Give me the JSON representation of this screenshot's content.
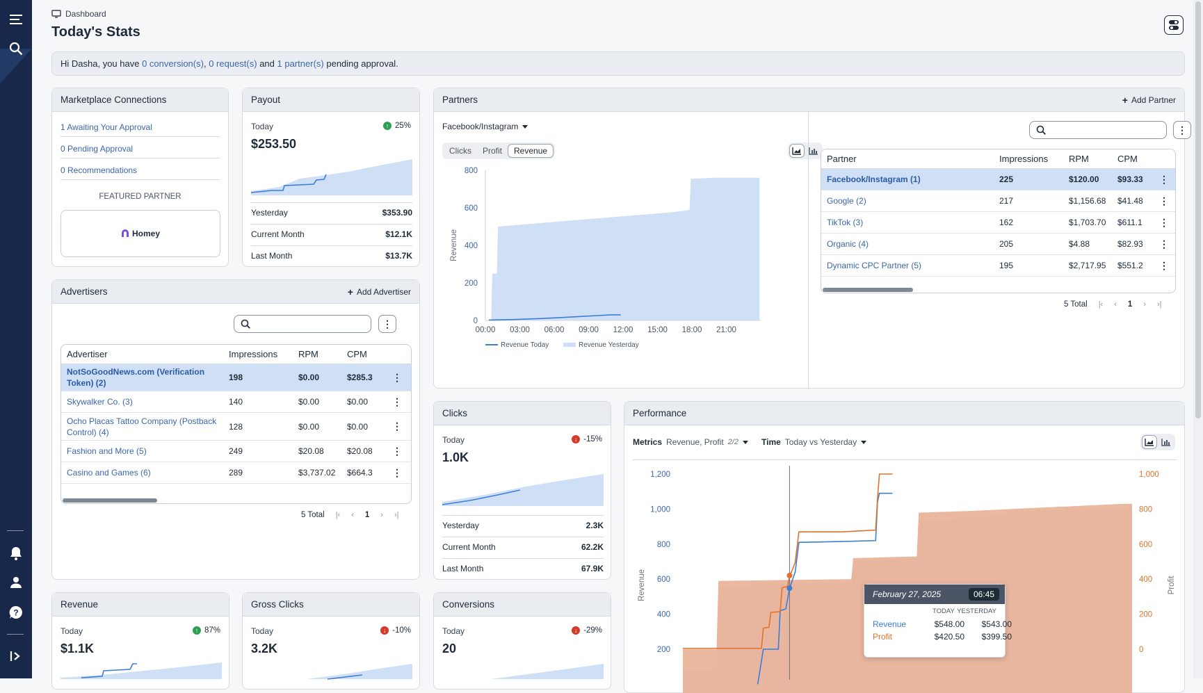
{
  "breadcrumb": {
    "label": "Dashboard"
  },
  "page": {
    "title": "Today's Stats"
  },
  "notice": {
    "greeting": "Hi Dasha, you have",
    "conversions": "0 conversion(s)",
    "sep1": ",",
    "requests": "0 request(s)",
    "and": "and",
    "partners": "1 partner(s)",
    "tail": "pending approval."
  },
  "marketplace": {
    "title": "Marketplace Connections",
    "items": [
      "1 Awaiting Your Approval",
      "0 Pending Approval",
      "0 Recommendations"
    ],
    "featured_label": "FEATURED PARTNER",
    "featured_name": "Homey"
  },
  "payout": {
    "title": "Payout",
    "today_label": "Today",
    "value": "$253.50",
    "pct": "25%",
    "trend": "up",
    "rows": [
      {
        "label": "Yesterday",
        "value": "$353.90"
      },
      {
        "label": "Current Month",
        "value": "$12.1K"
      },
      {
        "label": "Last Month",
        "value": "$13.7K"
      }
    ]
  },
  "advertisers": {
    "title": "Advertisers",
    "add_label": "Add Advertiser",
    "columns": [
      "Advertiser",
      "Impressions",
      "RPM",
      "CPM"
    ],
    "rows": [
      {
        "name": "NotSoGoodNews.com (Verification Token) (2)",
        "impressions": "198",
        "rpm": "$0.00",
        "cpm": "$285.3",
        "selected": true
      },
      {
        "name": "Skywalker Co. (3)",
        "impressions": "140",
        "rpm": "$0.00",
        "cpm": "$0.00"
      },
      {
        "name": "Ocho Placas Tattoo Company (Postback Control) (4)",
        "impressions": "128",
        "rpm": "$0.00",
        "cpm": "$0.00"
      },
      {
        "name": "Fashion and More (5)",
        "impressions": "249",
        "rpm": "$20.08",
        "cpm": "$20.08"
      },
      {
        "name": "Casino and Games (6)",
        "impressions": "289",
        "rpm": "$3,737.02",
        "cpm": "$664.3"
      }
    ],
    "total": "5 Total",
    "page": "1"
  },
  "partners": {
    "title": "Partners",
    "add_label": "Add Partner",
    "selector": "Facebook/Instagram",
    "tabs": [
      "Clicks",
      "Profit",
      "Revenue"
    ],
    "active_tab": "Revenue",
    "columns": [
      "Partner",
      "Impressions",
      "RPM",
      "CPM"
    ],
    "rows": [
      {
        "name": "Facebook/Instagram (1)",
        "impressions": "225",
        "rpm": "$120.00",
        "cpm": "$93.33",
        "selected": true
      },
      {
        "name": "Google (2)",
        "impressions": "217",
        "rpm": "$1,156.68",
        "cpm": "$41.48"
      },
      {
        "name": "TikTok (3)",
        "impressions": "162",
        "rpm": "$1,703.70",
        "cpm": "$611.1"
      },
      {
        "name": "Organic (4)",
        "impressions": "205",
        "rpm": "$4.88",
        "cpm": "$82.93"
      },
      {
        "name": "Dynamic CPC Partner (5)",
        "impressions": "195",
        "rpm": "$2,717.95",
        "cpm": "$551.2"
      }
    ],
    "total": "5 Total",
    "page": "1"
  },
  "clicks": {
    "title": "Clicks",
    "today_label": "Today",
    "value": "1.0K",
    "pct": "-15%",
    "trend": "down",
    "rows": [
      {
        "label": "Yesterday",
        "value": "2.3K"
      },
      {
        "label": "Current Month",
        "value": "62.2K"
      },
      {
        "label": "Last Month",
        "value": "67.9K"
      }
    ]
  },
  "revenue_card": {
    "title": "Revenue",
    "today_label": "Today",
    "value": "$1.1K",
    "pct": "87%",
    "trend": "up"
  },
  "gross_clicks": {
    "title": "Gross Clicks",
    "today_label": "Today",
    "value": "3.2K",
    "pct": "-10%",
    "trend": "down"
  },
  "conversions": {
    "title": "Conversions",
    "today_label": "Today",
    "value": "20",
    "pct": "-29%",
    "trend": "down"
  },
  "performance": {
    "title": "Performance",
    "metrics_label": "Metrics",
    "metrics_value": "Revenue, Profit",
    "metrics_count": "2/2",
    "time_label": "Time",
    "time_value": "Today vs Yesterday",
    "tooltip": {
      "date": "February 27, 2025",
      "time": "06:45",
      "col_today": "TODAY",
      "col_yesterday": "YESTERDAY",
      "rows": [
        {
          "name": "Revenue",
          "today": "$548.00",
          "yesterday": "$543.00",
          "color": "#3b7dd8"
        },
        {
          "name": "Profit",
          "today": "$420.50",
          "yesterday": "$399.50",
          "color": "#e0722a"
        }
      ]
    }
  },
  "chart_data": [
    {
      "type": "area",
      "ylabel": "Revenue",
      "x": [
        "00:00",
        "03:00",
        "06:00",
        "09:00",
        "12:00",
        "15:00",
        "18:00",
        "21:00"
      ],
      "ylim": [
        0,
        800
      ],
      "yticks": [
        0,
        200,
        400,
        600,
        800
      ],
      "legend_placement": "bottom",
      "series": [
        {
          "name": "Revenue Today",
          "kind": "line",
          "color": "#3b7dd8",
          "points": [
            [
              0.3,
              2
            ],
            [
              2.5,
              5
            ],
            [
              4.8,
              10
            ],
            [
              6.5,
              15
            ],
            [
              8.0,
              20
            ],
            [
              9.5,
              25
            ],
            [
              11.0,
              30
            ],
            [
              11.8,
              30
            ]
          ]
        },
        {
          "name": "Revenue Yesterday",
          "kind": "area",
          "color": "#cfe0f6",
          "points": [
            [
              0.2,
              0
            ],
            [
              0.5,
              0
            ],
            [
              0.6,
              250
            ],
            [
              1.0,
              250
            ],
            [
              1.1,
              500
            ],
            [
              2.0,
              505
            ],
            [
              4.0,
              515
            ],
            [
              6.0,
              525
            ],
            [
              8.0,
              535
            ],
            [
              10.0,
              545
            ],
            [
              12.0,
              555
            ],
            [
              14.0,
              565
            ],
            [
              16.0,
              575
            ],
            [
              17.5,
              585
            ],
            [
              17.8,
              590
            ],
            [
              17.9,
              755
            ],
            [
              20.0,
              760
            ],
            [
              23.9,
              760
            ]
          ]
        }
      ]
    },
    {
      "type": "area",
      "ylabel": "Revenue",
      "y2label": "Profit",
      "ylim": [
        0,
        1200
      ],
      "yticks": [
        200,
        400,
        600,
        800,
        1000,
        1200
      ],
      "y2lim": [
        0,
        1000
      ],
      "y2ticks": [
        0,
        200,
        400,
        600,
        800,
        1000
      ],
      "series": [
        {
          "name": "Revenue Yesterday",
          "kind": "area",
          "color": "#cfe0f6",
          "points": [
            [
              0,
              80
            ],
            [
              1.8,
              80
            ],
            [
              1.9,
              550
            ],
            [
              3.5,
              560
            ],
            [
              4.4,
              570
            ],
            [
              9.0,
              580
            ],
            [
              9.1,
              700
            ],
            [
              12.5,
              720
            ],
            [
              12.6,
              930
            ],
            [
              15.5,
              950
            ],
            [
              18.5,
              990
            ],
            [
              23.5,
              1000
            ],
            [
              24,
              1010
            ]
          ]
        },
        {
          "name": "Profit Yesterday",
          "kind": "area",
          "color": "#e9b39a",
          "points": [
            [
              0,
              0
            ],
            [
              1.8,
              0
            ],
            [
              1.9,
              390
            ],
            [
              9.0,
              400
            ],
            [
              9.1,
              520
            ],
            [
              12.5,
              530
            ],
            [
              12.6,
              780
            ],
            [
              15.5,
              790
            ],
            [
              23.5,
              830
            ],
            [
              24,
              830
            ]
          ]
        },
        {
          "name": "Revenue Today",
          "kind": "line",
          "color": "#3b7dd8",
          "points": [
            [
              4.0,
              0
            ],
            [
              4.3,
              200
            ],
            [
              5.1,
              200
            ],
            [
              5.2,
              420
            ],
            [
              5.5,
              430
            ],
            [
              5.7,
              548
            ],
            [
              6.0,
              640
            ],
            [
              6.2,
              810
            ],
            [
              8.5,
              815
            ],
            [
              10.3,
              820
            ],
            [
              10.4,
              1040
            ],
            [
              10.5,
              1090
            ],
            [
              11.2,
              1090
            ]
          ]
        },
        {
          "name": "Profit Today",
          "kind": "line",
          "color": "#e0722a",
          "points": [
            [
              0,
              5
            ],
            [
              4.2,
              5
            ],
            [
              4.3,
              120
            ],
            [
              4.6,
              125
            ],
            [
              4.7,
              210
            ],
            [
              5.2,
              215
            ],
            [
              5.3,
              350
            ],
            [
              5.6,
              360
            ],
            [
              5.7,
              420
            ],
            [
              5.8,
              440
            ],
            [
              6.0,
              495
            ],
            [
              6.2,
              670
            ],
            [
              8.5,
              670
            ],
            [
              10.3,
              680
            ],
            [
              10.4,
              860
            ],
            [
              10.5,
              1000
            ],
            [
              11.2,
              1000
            ]
          ]
        }
      ]
    }
  ],
  "colors": {
    "accent": "#3b66ae",
    "sidebar": "#17284a",
    "up": "#2fa052",
    "down": "#d23a2c",
    "selected_row": "#cfe0f6"
  }
}
